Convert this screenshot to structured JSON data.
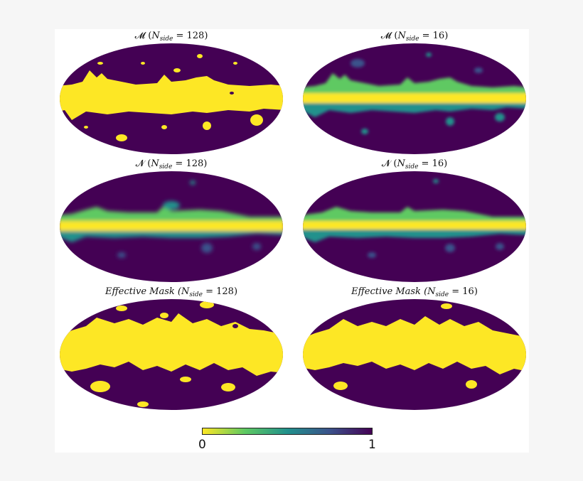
{
  "panels": [
    {
      "id": "m128",
      "prefix": "𝓜 (",
      "sym": "N",
      "sub": "side",
      "eq": " = ",
      "val": "128",
      "suffix": ")"
    },
    {
      "id": "m16",
      "prefix": "𝓜 (",
      "sym": "N",
      "sub": "side",
      "eq": " = ",
      "val": "16",
      "suffix": ")"
    },
    {
      "id": "n128",
      "prefix": "𝓝 (",
      "sym": "N",
      "sub": "side",
      "eq": " = ",
      "val": "128",
      "suffix": ")"
    },
    {
      "id": "n16",
      "prefix": "𝓝 (",
      "sym": "N",
      "sub": "side",
      "eq": " = ",
      "val": "16",
      "suffix": ")"
    },
    {
      "id": "e128",
      "prefix": "Effective Mask (",
      "sym": "N",
      "sub": "side",
      "eq": " = ",
      "val": "128",
      "suffix": ")"
    },
    {
      "id": "e16",
      "prefix": "Effective Mask (",
      "sym": "N",
      "sub": "side",
      "eq": " = ",
      "val": "16",
      "suffix": ")"
    }
  ],
  "colorbar": {
    "min_label": "0",
    "max_label": "1",
    "colors": [
      "#fde725",
      "#5ec962",
      "#21918c",
      "#3b528b",
      "#440154"
    ]
  },
  "palette": {
    "dark": "#440154",
    "yellow": "#fde725",
    "teal": "#21918c",
    "blue": "#3b528b",
    "green": "#5ec962"
  }
}
